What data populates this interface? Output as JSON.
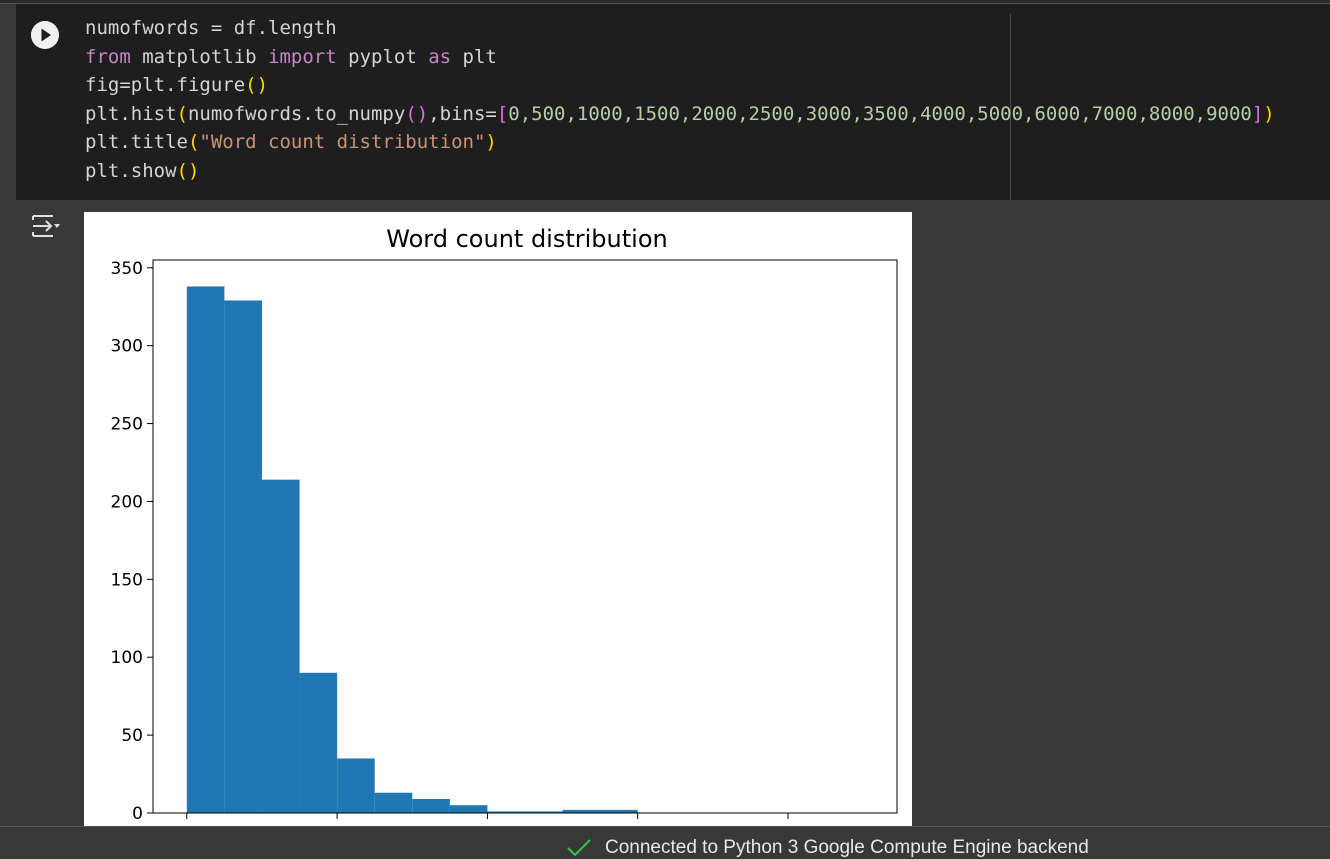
{
  "code": {
    "lines": [
      [
        "numofwords = df.length"
      ],
      [
        "from",
        " matplotlib ",
        "import",
        " pyplot ",
        "as",
        " plt"
      ],
      [
        "fig=plt.figure",
        "()"
      ],
      [
        "plt.hist",
        "(",
        "numofwords.to_numpy",
        "()",
        ",bins=",
        "[",
        "0,500,1000,1500,2000,2500,3000,3500,4000,5000,6000,7000,8000,9000",
        "]",
        ")"
      ],
      [
        "plt.title",
        "(",
        "\"Word count distribution\"",
        ")"
      ],
      [
        "plt.show",
        "()"
      ]
    ]
  },
  "chart_data": {
    "type": "histogram",
    "title": "Word count distribution",
    "bins": [
      0,
      500,
      1000,
      1500,
      2000,
      2500,
      3000,
      3500,
      4000,
      5000,
      6000,
      7000,
      8000,
      9000
    ],
    "counts": [
      338,
      329,
      214,
      90,
      35,
      13,
      9,
      5,
      1,
      2,
      0,
      0,
      0
    ],
    "color": "#1f77b4",
    "xlim": [
      -450,
      9450
    ],
    "xticks": [
      0,
      2000,
      4000,
      6000,
      8000
    ],
    "ylim": [
      0,
      355
    ],
    "yticks": [
      0,
      50,
      100,
      150,
      200,
      250,
      300,
      350
    ]
  },
  "status": {
    "text": "Connected to Python 3 Google Compute Engine backend"
  }
}
